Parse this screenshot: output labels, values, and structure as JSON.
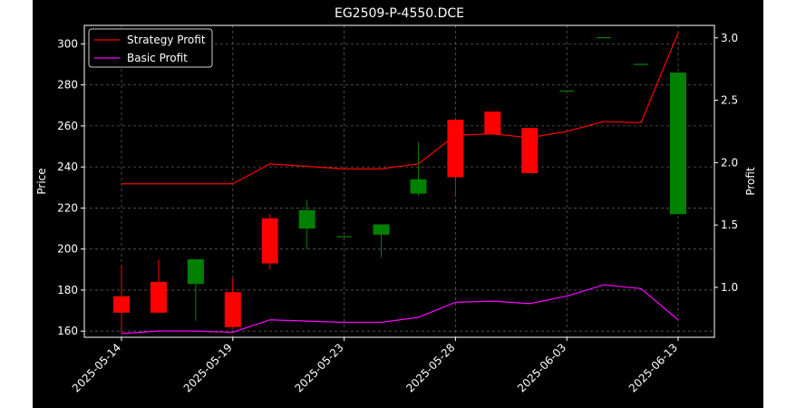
{
  "chart_data": {
    "type": "candlestick+line",
    "title": "EG2509-P-4550.DCE",
    "ylabel": "Price",
    "y2label": "Profit",
    "ylim": [
      157,
      309
    ],
    "y2lim": [
      0.6,
      3.1
    ],
    "y_ticks": [
      160,
      180,
      200,
      220,
      240,
      260,
      280,
      300
    ],
    "y2_ticks": [
      "1.0",
      "1.5",
      "2.0",
      "2.5",
      "3.0"
    ],
    "x_tick_labels": [
      "2025-05-14",
      "2025-05-19",
      "2025-05-23",
      "2025-05-28",
      "2025-06-03",
      "2025-06-13"
    ],
    "x_tick_index": [
      0,
      3,
      6,
      9,
      12,
      15
    ],
    "grid": true,
    "legend_position": "upper-left",
    "colors": {
      "up": "#008000",
      "down": "#ff0000",
      "strategy": "#ff0000",
      "basic": "#ff00ff",
      "background": "#000000",
      "text": "#ffffff"
    },
    "candles": [
      {
        "date": "2025-05-14",
        "open": 177,
        "high": 192,
        "low": 159,
        "close": 169
      },
      {
        "date": "2025-05-15",
        "open": 184,
        "high": 195,
        "low": 170,
        "close": 169
      },
      {
        "date": "2025-05-16",
        "open": 183,
        "high": 195,
        "low": 165,
        "close": 195
      },
      {
        "date": "2025-05-19",
        "open": 179,
        "high": 186,
        "low": 161,
        "close": 162
      },
      {
        "date": "2025-05-20",
        "open": 215,
        "high": 217,
        "low": 190,
        "close": 193
      },
      {
        "date": "2025-05-21",
        "open": 210,
        "high": 224,
        "low": 200,
        "close": 219
      },
      {
        "date": "2025-05-22",
        "open": 206,
        "high": 206,
        "low": 206,
        "close": 206
      },
      {
        "date": "2025-05-23",
        "open": 207,
        "high": 212,
        "low": 196,
        "close": 212
      },
      {
        "date": "2025-05-26",
        "open": 227,
        "high": 252,
        "low": 226,
        "close": 234
      },
      {
        "date": "2025-05-27",
        "open": 263,
        "high": 263,
        "low": 226,
        "close": 235
      },
      {
        "date": "2025-05-28",
        "open": 267,
        "high": 267,
        "low": 256,
        "close": 256
      },
      {
        "date": "2025-05-29",
        "open": 259,
        "high": 259,
        "low": 237,
        "close": 237
      },
      {
        "date": "2025-06-03",
        "open": 277,
        "high": 277,
        "low": 277,
        "close": 277
      },
      {
        "date": "2025-06-05",
        "open": 303,
        "high": 303,
        "low": 303,
        "close": 303
      },
      {
        "date": "2025-06-11",
        "open": 290,
        "high": 290,
        "low": 290,
        "close": 290
      },
      {
        "date": "2025-06-13",
        "open": 217,
        "high": 286,
        "low": 217,
        "close": 286
      }
    ],
    "series": [
      {
        "name": "Strategy Profit",
        "values": [
          1.83,
          1.83,
          1.83,
          1.83,
          1.99,
          1.97,
          1.95,
          1.95,
          1.99,
          2.22,
          2.23,
          2.2,
          2.25,
          2.33,
          2.32,
          3.04
        ]
      },
      {
        "name": "Basic Profit",
        "values": [
          0.63,
          0.65,
          0.65,
          0.64,
          0.74,
          0.73,
          0.72,
          0.72,
          0.76,
          0.88,
          0.89,
          0.87,
          0.93,
          1.02,
          0.99,
          0.74
        ]
      }
    ]
  }
}
